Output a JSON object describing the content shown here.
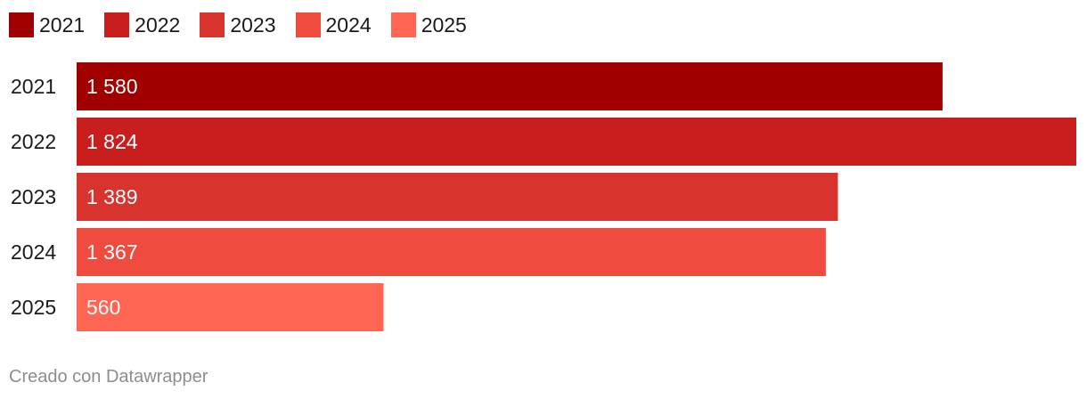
{
  "chart_data": {
    "type": "bar",
    "orientation": "horizontal",
    "categories": [
      "2021",
      "2022",
      "2023",
      "2024",
      "2025"
    ],
    "values": [
      1580,
      1824,
      1389,
      1367,
      560
    ],
    "value_labels": [
      "1 580",
      "1 824",
      "1 389",
      "1 367",
      "560"
    ],
    "colors": [
      "#a00000",
      "#c81e1e",
      "#d8332d",
      "#ef4b3f",
      "#ff6553"
    ],
    "legend": [
      "2021",
      "2022",
      "2023",
      "2024",
      "2025"
    ],
    "legend_position": "top-left",
    "xlim": [
      0,
      1824
    ],
    "grid": false
  },
  "footer": {
    "credit": "Creado con Datawrapper"
  }
}
